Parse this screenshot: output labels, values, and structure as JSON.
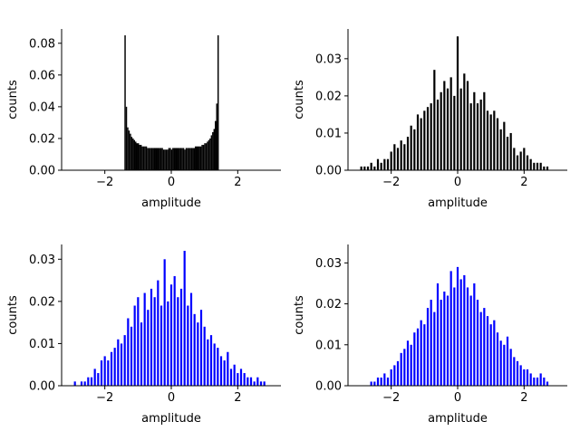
{
  "chart_data": [
    {
      "type": "bar",
      "xlabel": "amplitude",
      "ylabel": "counts",
      "xlim": [
        -3.3,
        3.3
      ],
      "ylim": [
        0,
        0.089
      ],
      "xticks": [
        -2,
        0,
        2
      ],
      "yticks": [
        0.0,
        0.02,
        0.04,
        0.06,
        0.08
      ],
      "ytick_labels": [
        "0.00",
        "0.02",
        "0.04",
        "0.06",
        "0.08"
      ],
      "grid": false,
      "color": "#000000",
      "bar_width": 0.04,
      "x": [
        -1.39,
        -1.35,
        -1.31,
        -1.27,
        -1.23,
        -1.19,
        -1.15,
        -1.11,
        -1.07,
        -1.03,
        -0.99,
        -0.95,
        -0.91,
        -0.87,
        -0.83,
        -0.79,
        -0.75,
        -0.71,
        -0.67,
        -0.63,
        -0.59,
        -0.55,
        -0.51,
        -0.47,
        -0.43,
        -0.39,
        -0.35,
        -0.31,
        -0.27,
        -0.23,
        -0.19,
        -0.15,
        -0.11,
        -0.07,
        -0.03,
        0.01,
        0.05,
        0.09,
        0.13,
        0.17,
        0.21,
        0.25,
        0.29,
        0.33,
        0.37,
        0.41,
        0.45,
        0.49,
        0.53,
        0.57,
        0.61,
        0.65,
        0.69,
        0.73,
        0.77,
        0.81,
        0.85,
        0.89,
        0.93,
        0.97,
        1.01,
        1.05,
        1.09,
        1.13,
        1.17,
        1.21,
        1.25,
        1.29,
        1.33,
        1.37,
        1.41
      ],
      "values": [
        0.085,
        0.04,
        0.027,
        0.025,
        0.023,
        0.021,
        0.02,
        0.019,
        0.018,
        0.017,
        0.017,
        0.016,
        0.016,
        0.015,
        0.015,
        0.015,
        0.015,
        0.014,
        0.014,
        0.014,
        0.014,
        0.014,
        0.014,
        0.014,
        0.014,
        0.014,
        0.014,
        0.014,
        0.014,
        0.013,
        0.013,
        0.013,
        0.013,
        0.014,
        0.014,
        0.013,
        0.014,
        0.014,
        0.014,
        0.014,
        0.014,
        0.014,
        0.014,
        0.014,
        0.014,
        0.013,
        0.014,
        0.014,
        0.014,
        0.014,
        0.014,
        0.014,
        0.014,
        0.015,
        0.015,
        0.015,
        0.015,
        0.015,
        0.016,
        0.016,
        0.017,
        0.017,
        0.018,
        0.019,
        0.02,
        0.022,
        0.024,
        0.026,
        0.031,
        0.042,
        0.085
      ]
    },
    {
      "type": "bar",
      "xlabel": "amplitude",
      "ylabel": "counts",
      "xlim": [
        -3.3,
        3.3
      ],
      "ylim": [
        0,
        0.038
      ],
      "xticks": [
        -2,
        0,
        2
      ],
      "yticks": [
        0.0,
        0.01,
        0.02,
        0.03
      ],
      "ytick_labels": [
        "0.00",
        "0.01",
        "0.02",
        "0.03"
      ],
      "grid": false,
      "color": "#000000",
      "bar_width": 0.06,
      "x": [
        -2.9,
        -2.8,
        -2.7,
        -2.6,
        -2.5,
        -2.4,
        -2.3,
        -2.2,
        -2.1,
        -2.0,
        -1.9,
        -1.8,
        -1.7,
        -1.6,
        -1.5,
        -1.4,
        -1.3,
        -1.2,
        -1.1,
        -1.0,
        -0.9,
        -0.8,
        -0.7,
        -0.6,
        -0.5,
        -0.4,
        -0.3,
        -0.2,
        -0.1,
        0.0,
        0.1,
        0.2,
        0.3,
        0.4,
        0.5,
        0.6,
        0.7,
        0.8,
        0.9,
        1.0,
        1.1,
        1.2,
        1.3,
        1.4,
        1.5,
        1.6,
        1.7,
        1.8,
        1.9,
        2.0,
        2.1,
        2.2,
        2.3,
        2.4,
        2.5,
        2.6,
        2.7
      ],
      "values": [
        0.001,
        0.001,
        0.001,
        0.002,
        0.001,
        0.003,
        0.002,
        0.003,
        0.003,
        0.005,
        0.007,
        0.006,
        0.008,
        0.007,
        0.009,
        0.012,
        0.011,
        0.015,
        0.014,
        0.016,
        0.017,
        0.018,
        0.027,
        0.019,
        0.021,
        0.024,
        0.022,
        0.025,
        0.02,
        0.036,
        0.022,
        0.026,
        0.024,
        0.018,
        0.021,
        0.018,
        0.019,
        0.021,
        0.016,
        0.015,
        0.016,
        0.014,
        0.011,
        0.013,
        0.009,
        0.01,
        0.006,
        0.004,
        0.005,
        0.006,
        0.004,
        0.003,
        0.002,
        0.002,
        0.002,
        0.001,
        0.001
      ]
    },
    {
      "type": "bar",
      "xlabel": "amplitude",
      "ylabel": "counts",
      "xlim": [
        -3.3,
        3.3
      ],
      "ylim": [
        0,
        0.0335
      ],
      "xticks": [
        -2,
        0,
        2
      ],
      "yticks": [
        0.0,
        0.01,
        0.02,
        0.03
      ],
      "ytick_labels": [
        "0.00",
        "0.01",
        "0.02",
        "0.03"
      ],
      "grid": false,
      "color": "#0000ff",
      "bar_width": 0.06,
      "x": [
        -2.9,
        -2.7,
        -2.6,
        -2.5,
        -2.4,
        -2.3,
        -2.2,
        -2.1,
        -2.0,
        -1.9,
        -1.8,
        -1.7,
        -1.6,
        -1.5,
        -1.4,
        -1.3,
        -1.2,
        -1.1,
        -1.0,
        -0.9,
        -0.8,
        -0.7,
        -0.6,
        -0.5,
        -0.4,
        -0.3,
        -0.2,
        -0.1,
        0.0,
        0.1,
        0.2,
        0.3,
        0.4,
        0.5,
        0.6,
        0.7,
        0.8,
        0.9,
        1.0,
        1.1,
        1.2,
        1.3,
        1.4,
        1.5,
        1.6,
        1.7,
        1.8,
        1.9,
        2.0,
        2.1,
        2.2,
        2.3,
        2.4,
        2.5,
        2.6,
        2.7,
        2.8
      ],
      "values": [
        0.001,
        0.001,
        0.001,
        0.002,
        0.002,
        0.004,
        0.003,
        0.006,
        0.007,
        0.006,
        0.008,
        0.009,
        0.011,
        0.01,
        0.012,
        0.016,
        0.014,
        0.019,
        0.021,
        0.015,
        0.022,
        0.018,
        0.023,
        0.021,
        0.025,
        0.019,
        0.03,
        0.02,
        0.024,
        0.026,
        0.021,
        0.023,
        0.032,
        0.019,
        0.022,
        0.017,
        0.015,
        0.018,
        0.014,
        0.011,
        0.012,
        0.01,
        0.009,
        0.007,
        0.006,
        0.008,
        0.004,
        0.005,
        0.003,
        0.004,
        0.003,
        0.002,
        0.002,
        0.001,
        0.002,
        0.001,
        0.001
      ]
    },
    {
      "type": "bar",
      "xlabel": "amplitude",
      "ylabel": "counts",
      "xlim": [
        -3.3,
        3.3
      ],
      "ylim": [
        0,
        0.0345
      ],
      "xticks": [
        -2,
        0,
        2
      ],
      "yticks": [
        0.0,
        0.01,
        0.02,
        0.03
      ],
      "ytick_labels": [
        "0.00",
        "0.01",
        "0.02",
        "0.03"
      ],
      "grid": false,
      "color": "#0000ff",
      "bar_width": 0.06,
      "x": [
        -2.6,
        -2.5,
        -2.4,
        -2.3,
        -2.2,
        -2.1,
        -2.0,
        -1.9,
        -1.8,
        -1.7,
        -1.6,
        -1.5,
        -1.4,
        -1.3,
        -1.2,
        -1.1,
        -1.0,
        -0.9,
        -0.8,
        -0.7,
        -0.6,
        -0.5,
        -0.4,
        -0.3,
        -0.2,
        -0.1,
        0.0,
        0.1,
        0.2,
        0.3,
        0.4,
        0.5,
        0.6,
        0.7,
        0.8,
        0.9,
        1.0,
        1.1,
        1.2,
        1.3,
        1.4,
        1.5,
        1.6,
        1.7,
        1.8,
        1.9,
        2.0,
        2.1,
        2.2,
        2.3,
        2.4,
        2.5,
        2.6,
        2.7
      ],
      "values": [
        0.001,
        0.001,
        0.002,
        0.002,
        0.003,
        0.002,
        0.004,
        0.005,
        0.006,
        0.008,
        0.009,
        0.011,
        0.01,
        0.013,
        0.014,
        0.016,
        0.015,
        0.019,
        0.021,
        0.018,
        0.025,
        0.021,
        0.023,
        0.022,
        0.028,
        0.024,
        0.029,
        0.026,
        0.027,
        0.024,
        0.022,
        0.025,
        0.021,
        0.018,
        0.019,
        0.017,
        0.015,
        0.016,
        0.013,
        0.011,
        0.01,
        0.012,
        0.009,
        0.007,
        0.006,
        0.005,
        0.004,
        0.004,
        0.003,
        0.002,
        0.002,
        0.003,
        0.002,
        0.001
      ]
    }
  ]
}
